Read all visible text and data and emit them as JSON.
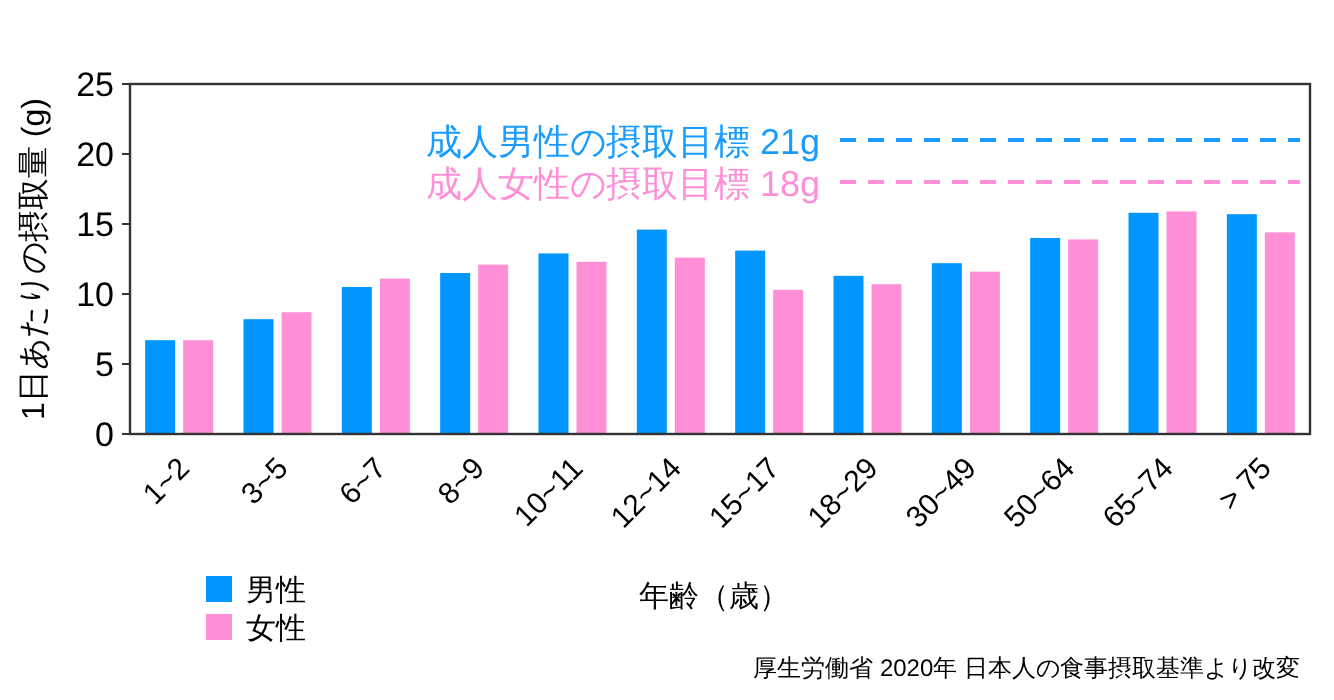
{
  "chart_data": {
    "type": "bar",
    "categories": [
      "1~2",
      "3~5",
      "6~7",
      "8~9",
      "10~11",
      "12~14",
      "15~17",
      "18~29",
      "30~49",
      "50~64",
      "65~74",
      "> 75"
    ],
    "series": [
      {
        "name": "男性",
        "color": "#0096ff",
        "values": [
          6.7,
          8.2,
          10.5,
          11.5,
          12.9,
          14.6,
          13.1,
          11.3,
          12.2,
          14.0,
          15.8,
          15.7
        ]
      },
      {
        "name": "女性",
        "color": "#ff8fd6",
        "values": [
          6.7,
          8.7,
          11.1,
          12.1,
          12.3,
          12.6,
          10.3,
          10.7,
          11.6,
          13.9,
          15.9,
          14.4
        ]
      }
    ],
    "xlabel": "年齢（歳）",
    "ylabel": "1日あたりの摂取量 (g)",
    "ylim": [
      0,
      25
    ],
    "yticks": [
      0,
      5,
      10,
      15,
      20,
      25
    ],
    "ref_lines": [
      {
        "axis": "y",
        "value": 21,
        "label": "成人男性の摂取目標 21g",
        "color": "#1a9cff",
        "line_style": "dashed"
      },
      {
        "axis": "y",
        "value": 18,
        "label": "成人女性の摂取目標 18g",
        "color": "#ff8fd6",
        "line_style": "dashed"
      }
    ],
    "annotations": [
      "厚生労働省 2020年 日本人の食事摂取基準より改変"
    ],
    "legend": "bottom left",
    "grid": false
  }
}
